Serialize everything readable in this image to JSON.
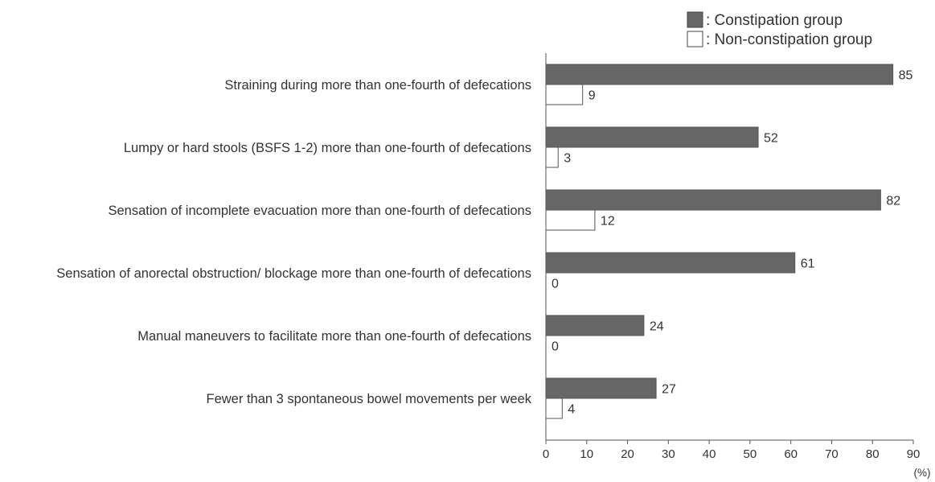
{
  "chart_data": {
    "type": "bar",
    "orientation": "horizontal",
    "categories": [
      "Straining during more than one-fourth of defecations",
      "Lumpy or hard stools (BSFS 1-2) more than one-fourth of defecations",
      "Sensation of incomplete evacuation more than one-fourth of defecations",
      "Sensation of anorectal obstruction/ blockage more than one-fourth of defecations",
      "Manual maneuvers to facilitate more than one-fourth of defecations",
      "Fewer than 3 spontaneous bowel movements per week"
    ],
    "series": [
      {
        "name": ": Constipation group",
        "color": "#666666",
        "values": [
          85,
          52,
          82,
          61,
          24,
          27
        ]
      },
      {
        "name": ": Non-constipation group",
        "color": "#ffffff",
        "values": [
          9,
          3,
          12,
          0,
          0,
          4
        ]
      }
    ],
    "xlim": [
      0,
      90
    ],
    "xticks": [
      0,
      10,
      20,
      30,
      40,
      50,
      60,
      70,
      80,
      90
    ],
    "xunit": "(%)",
    "grid": false,
    "legend_position": "top-right"
  }
}
